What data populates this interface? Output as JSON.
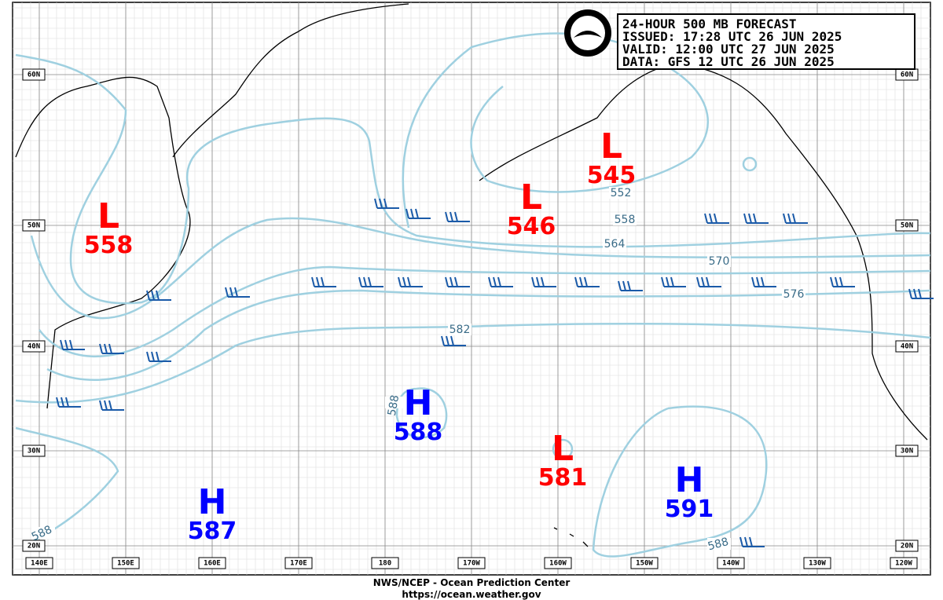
{
  "header": {
    "lines": [
      "24-HOUR 500 MB FORECAST",
      "ISSUED: 17:28 UTC 26 JUN 2025",
      "VALID:  12:00 UTC 27 JUN 2025",
      "DATA:  GFS 12 UTC 26 JUN 2025"
    ]
  },
  "centers": [
    {
      "label": "L",
      "value": 558
    },
    {
      "label": "L",
      "value": 545
    },
    {
      "label": "L",
      "value": 546
    },
    {
      "label": "L",
      "value": 581
    },
    {
      "label": "H",
      "value": 588
    },
    {
      "label": "H",
      "value": 587
    },
    {
      "label": "H",
      "value": 591
    }
  ],
  "contour_labels": [
    552,
    558,
    564,
    570,
    576,
    582,
    588,
    588,
    588
  ],
  "lat_labels": [
    "60N",
    "50N",
    "40N",
    "30N",
    "20N"
  ],
  "lon_labels": [
    "140E",
    "150E",
    "160E",
    "170E",
    "180",
    "170W",
    "160W",
    "150W",
    "140W",
    "130W",
    "120W"
  ],
  "footer": {
    "agency": "NWS/NCEP - Ocean Prediction Center",
    "url": "https://ocean.weather.gov"
  }
}
